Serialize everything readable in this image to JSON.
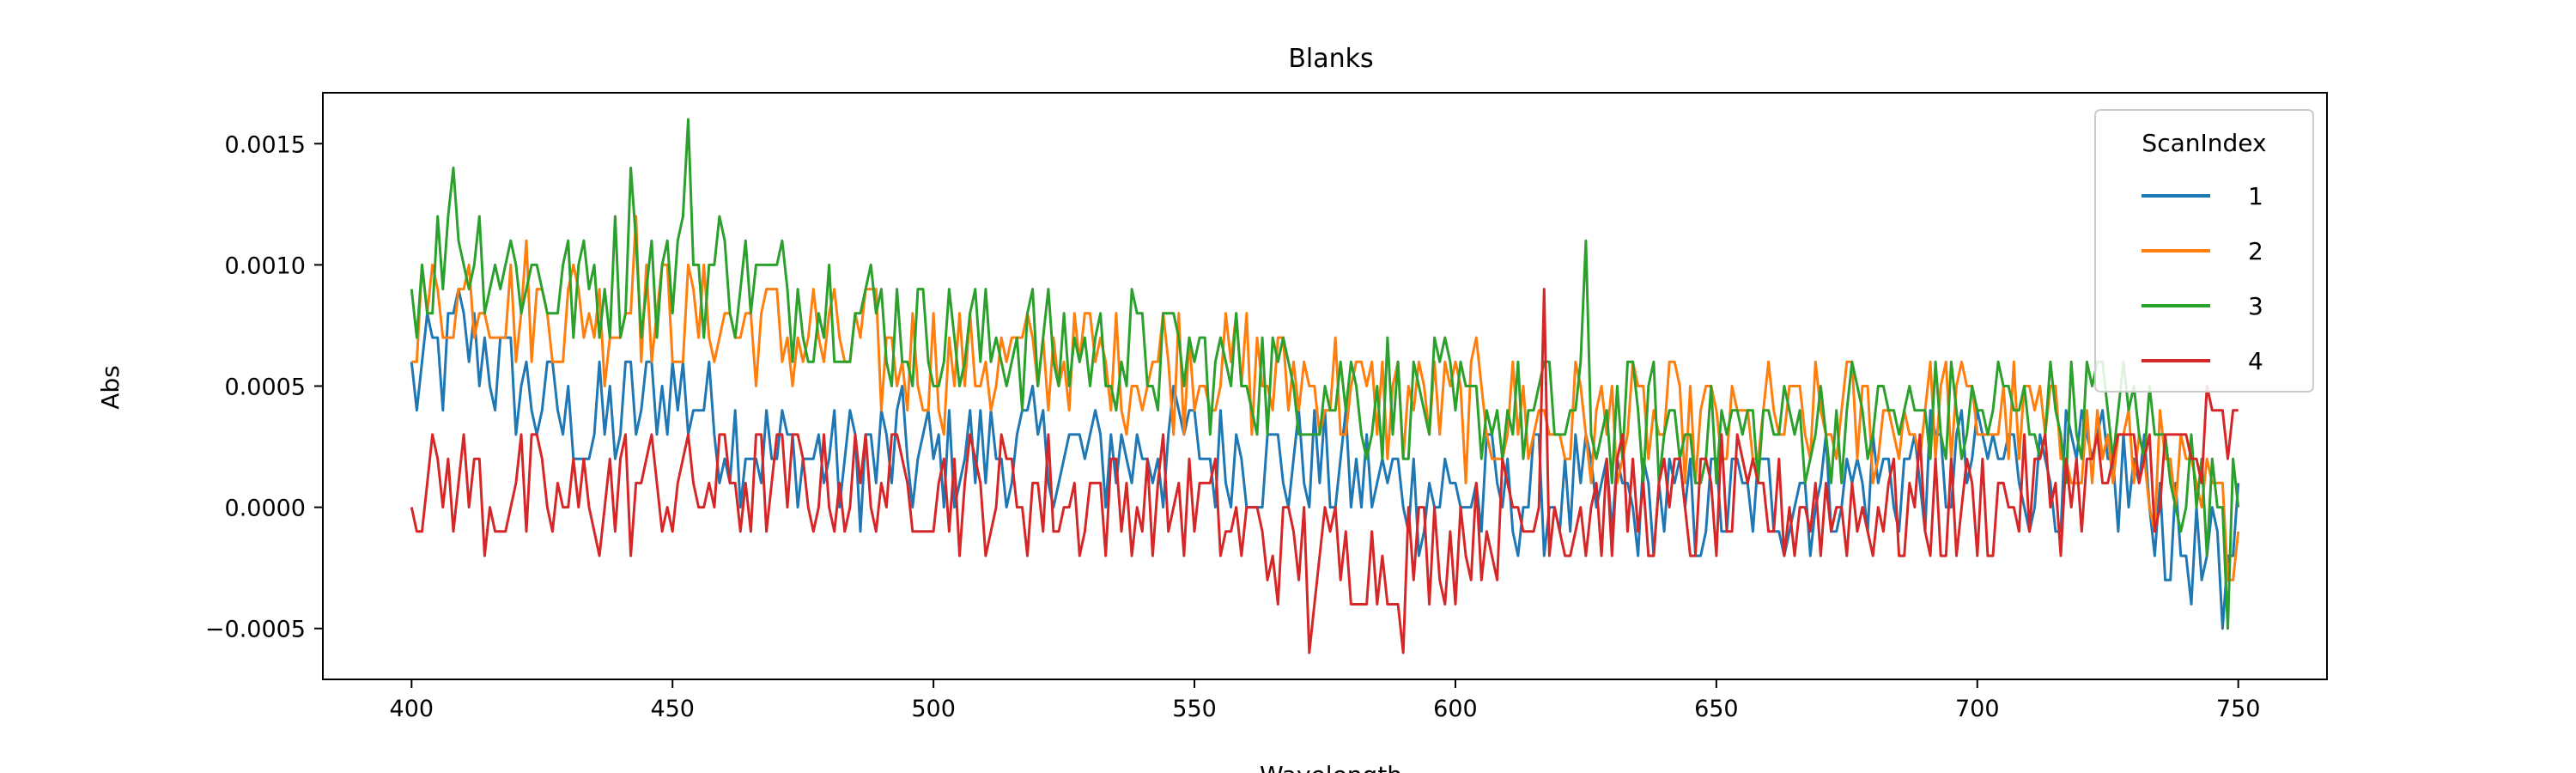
{
  "chart_data": {
    "type": "line",
    "title": "Blanks",
    "xlabel": "Wavelength",
    "ylabel": "Abs",
    "xlim": [
      383,
      767
    ],
    "ylim": [
      -0.00071,
      0.00171
    ],
    "x_range": [
      400,
      750
    ],
    "x_step": 1,
    "xticks": [
      400,
      450,
      500,
      550,
      600,
      650,
      700,
      750
    ],
    "xtick_labels": [
      "400",
      "450",
      "500",
      "550",
      "600",
      "650",
      "700",
      "750"
    ],
    "yticks": [
      -0.0005,
      0.0,
      0.0005,
      0.001,
      0.0015
    ],
    "ytick_labels": [
      "−0.0005",
      "0.0000",
      "0.0005",
      "0.0010",
      "0.0015"
    ],
    "grid": false,
    "legend": {
      "title": "ScanIndex",
      "placement": "top-right"
    },
    "series": [
      {
        "name": "1",
        "color": "#1f77b4",
        "base": [
          [
            400,
            0.0005
          ],
          [
            410,
            0.0007
          ],
          [
            420,
            0.0005
          ],
          [
            435,
            0.0003
          ],
          [
            450,
            0.0005
          ],
          [
            470,
            0.0002
          ],
          [
            500,
            0.0002
          ],
          [
            550,
            0.00025
          ],
          [
            600,
            5e-05
          ],
          [
            650,
            0.0
          ],
          [
            700,
            0.0002
          ],
          [
            730,
            0.0001
          ],
          [
            745,
            -0.0003
          ],
          [
            750,
            0.0
          ]
        ]
      },
      {
        "name": "2",
        "color": "#ff7f0e",
        "base": [
          [
            400,
            0.0008
          ],
          [
            410,
            0.0009
          ],
          [
            430,
            0.0008
          ],
          [
            450,
            0.0008
          ],
          [
            500,
            0.0006
          ],
          [
            550,
            0.0006
          ],
          [
            600,
            0.0004
          ],
          [
            650,
            0.0003
          ],
          [
            700,
            0.0004
          ],
          [
            730,
            0.0002
          ],
          [
            750,
            -0.0001
          ]
        ]
      },
      {
        "name": "3",
        "color": "#2ca02c",
        "base": [
          [
            400,
            0.0009
          ],
          [
            410,
            0.0011
          ],
          [
            430,
            0.0009
          ],
          [
            455,
            0.001
          ],
          [
            500,
            0.0007
          ],
          [
            550,
            0.0006
          ],
          [
            600,
            0.0004
          ],
          [
            650,
            0.0003
          ],
          [
            700,
            0.0004
          ],
          [
            730,
            0.0004
          ],
          [
            745,
            0.0
          ],
          [
            750,
            0.0002
          ]
        ]
      },
      {
        "name": "4",
        "color": "#d62728",
        "base": [
          [
            400,
            0.0001
          ],
          [
            430,
            0.0
          ],
          [
            450,
            0.0001
          ],
          [
            500,
            0.0001
          ],
          [
            550,
            0.0
          ],
          [
            570,
            -0.0002
          ],
          [
            590,
            -0.0002
          ],
          [
            620,
            0.0
          ],
          [
            650,
            0.0
          ],
          [
            700,
            0.0
          ],
          [
            740,
            0.0002
          ],
          [
            750,
            0.0003
          ]
        ]
      }
    ],
    "peaks": [
      {
        "series": "3",
        "x": 453,
        "y": 0.0016
      },
      {
        "series": "3",
        "x": 408,
        "y": 0.0014
      },
      {
        "series": "3",
        "x": 442,
        "y": 0.0014
      },
      {
        "series": "3",
        "x": 625,
        "y": 0.0011
      },
      {
        "series": "2",
        "x": 443,
        "y": 0.0012
      },
      {
        "series": "4",
        "x": 617,
        "y": 0.0009
      },
      {
        "series": "4",
        "x": 572,
        "y": -0.0006
      },
      {
        "series": "4",
        "x": 590,
        "y": -0.0006
      },
      {
        "series": "1",
        "x": 747,
        "y": -0.0005
      },
      {
        "series": "3",
        "x": 748,
        "y": -0.0005
      }
    ]
  }
}
